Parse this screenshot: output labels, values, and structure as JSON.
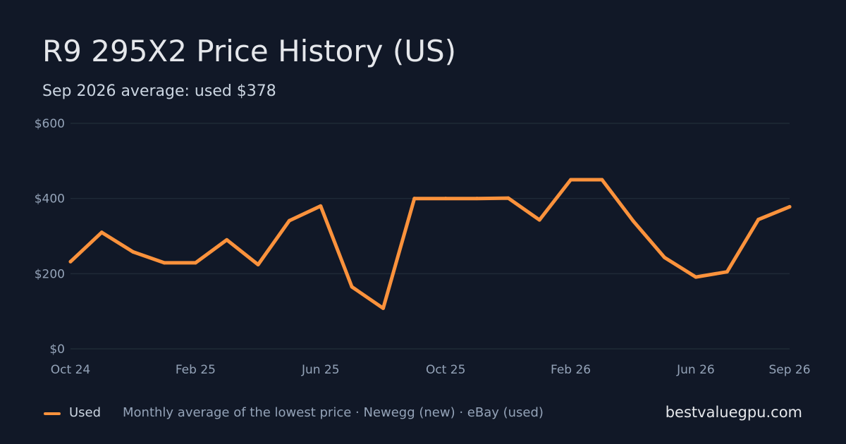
{
  "header": {
    "title": "R9 295X2 Price History (US)",
    "subtitle": "Sep 2026 average: used $378"
  },
  "footer": {
    "legend_label": "Used",
    "source_note": "Monthly average of the lowest price · Newegg (new) · eBay (used)",
    "brand": "bestvaluegpu.com"
  },
  "colors": {
    "background": "#111827",
    "grid": "#1f2a37",
    "used_line": "#fb923c"
  },
  "chart_data": {
    "type": "line",
    "title": "R9 295X2 Price History (US)",
    "subtitle": "Sep 2026 average: used $378",
    "x": [
      "2024-10",
      "2024-11",
      "2024-12",
      "2025-01",
      "2025-02",
      "2025-03",
      "2025-04",
      "2025-05",
      "2025-06",
      "2025-07",
      "2025-08",
      "2025-09",
      "2025-10",
      "2025-11",
      "2025-12",
      "2026-01",
      "2026-02",
      "2026-03",
      "2026-04",
      "2026-05",
      "2026-06",
      "2026-07",
      "2026-08",
      "2026-09"
    ],
    "series": [
      {
        "name": "Used",
        "color": "#fb923c",
        "values": [
          232,
          310,
          258,
          229,
          229,
          290,
          224,
          341,
          380,
          165,
          108,
          400,
          400,
          400,
          401,
          343,
          450,
          450,
          340,
          243,
          191,
          205,
          344,
          378
        ]
      }
    ],
    "ylim": [
      0,
      600
    ],
    "yticks": [
      0,
      200,
      400,
      600
    ],
    "ytick_labels": [
      "$0",
      "$200",
      "$400",
      "$600"
    ],
    "xtick_labels": [
      {
        "label": "Oct 24",
        "at": "2024-10"
      },
      {
        "label": "Feb 25",
        "at": "2025-02"
      },
      {
        "label": "Jun 25",
        "at": "2025-06"
      },
      {
        "label": "Oct 25",
        "at": "2025-10"
      },
      {
        "label": "Feb 26",
        "at": "2026-02"
      },
      {
        "label": "Jun 26",
        "at": "2026-06"
      },
      {
        "label": "Sep 26",
        "at": "2026-09"
      }
    ],
    "xlabel": "",
    "ylabel": "",
    "grid": true,
    "legend": "bottom-left"
  }
}
